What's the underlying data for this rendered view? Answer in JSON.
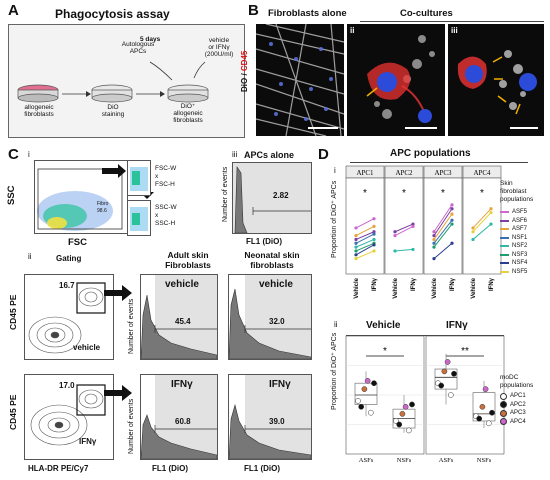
{
  "panelA": {
    "letter": "A",
    "title": "Phagocytosis assay",
    "autologous": "Autologous",
    "apcs": "APCs",
    "days": "5 days",
    "vehicle": "vehicle",
    "or_ifn": "or IFNγ",
    "dose": "(200U/ml)",
    "step1_l1": "allogeneic",
    "step1_l2": "fibroblasts",
    "step2_l1": "DiO",
    "step2_l2": "staining",
    "step3_l1": "DiO⁺",
    "step3_l2": "allogeneic",
    "step3_l3": "fibroblasts"
  },
  "panelB": {
    "letter": "B",
    "fib_alone": "Fibroblasts alone",
    "cocultures": "Co-cultures",
    "dio": "DiO",
    "slash": " / ",
    "cd45": "CD45",
    "sub_i": "i",
    "sub_ii": "ii",
    "sub_iii": "iii"
  },
  "panelC": {
    "letter": "C",
    "sub_i": "i",
    "sub_ii": "ii",
    "sub_iii": "iii",
    "ssc": "SSC",
    "fsc": "FSC",
    "fscw": "FSC-W",
    "x1": "x",
    "fsch": "FSC-H",
    "sscw": "SSC-W",
    "x2": "x",
    "ssch": "SSC-H",
    "gate_name": "Fibro",
    "gate_pct": "98.6",
    "apcs_alone": "APCs alone",
    "num_events": "Number of events",
    "fl1": "FL1 (DiO)",
    "val_alone": "2.82",
    "gating": "Gating",
    "adult": "Adult skin",
    "adult2": "Fibroblasts",
    "neo": "Neonatal skin",
    "neo2": "fibroblasts",
    "cd45pe": "CD45 PE",
    "hladr": "HLA-DR PE/Cy7",
    "gate_veh": "16.7",
    "gate_ifn": "17.0",
    "label_vehicle": "vehicle",
    "label_ifn": "IFNγ",
    "adult_veh": "45.4",
    "neo_veh": "32.0",
    "adult_ifn": "60.8",
    "neo_ifn": "39.0"
  },
  "panelD": {
    "letter": "D",
    "sub_i": "i",
    "sub_ii": "ii",
    "title": "APC populations",
    "apc_labels": [
      "APC1",
      "APC2",
      "APC3",
      "APC4"
    ],
    "ylabel": "Proportion of DiO⁺ APCs",
    "xlabels": [
      "Vehicle",
      "IFNγ"
    ],
    "star": "*",
    "legend_title_l1": "Skin",
    "legend_title_l2": "fibroblast",
    "legend_title_l3": "populations",
    "legend": [
      {
        "name": "ASF5",
        "color": "#cc66cc"
      },
      {
        "name": "ASF6",
        "color": "#7a3fa0"
      },
      {
        "name": "ASF7",
        "color": "#e6a23c"
      },
      {
        "name": "NSF1",
        "color": "#3c6fb0"
      },
      {
        "name": "NSF2",
        "color": "#2fb8a8"
      },
      {
        "name": "NSF3",
        "color": "#1e9e6b"
      },
      {
        "name": "NSF4",
        "color": "#2a3f8f"
      },
      {
        "name": "NSF5",
        "color": "#e8d03a"
      }
    ],
    "ii_vehicle": "Vehicle",
    "ii_ifn": "IFNγ",
    "ii_xlabels": [
      "ASFs",
      "NSFs"
    ],
    "sig_veh": "*",
    "sig_ifn": "**",
    "ii_legend_title_l1": "moDC",
    "ii_legend_title_l2": "populations",
    "ii_legend": [
      {
        "name": "APC1",
        "color": "#ffffff"
      },
      {
        "name": "APC2",
        "color": "#111111"
      },
      {
        "name": "APC3",
        "color": "#c8703e"
      },
      {
        "name": "APC4",
        "color": "#cc66cc"
      }
    ]
  }
}
